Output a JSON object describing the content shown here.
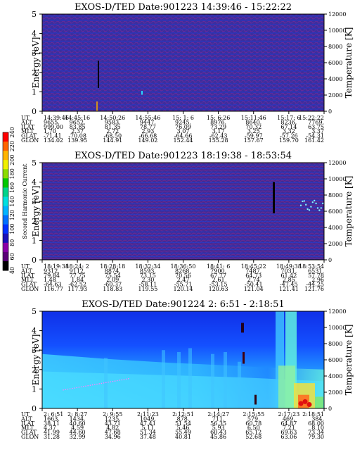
{
  "chart_data": [
    {
      "type": "heatmap",
      "title": "EXOS-D/TED   Date:901223  14:39:46 - 15:22:22",
      "ylabel": "Energy [eV]",
      "y2label": "Temperature [K]",
      "ylim": [
        0,
        5
      ],
      "y2lim": [
        0,
        12000
      ],
      "yticks": [
        "0",
        "1",
        "2",
        "3",
        "4",
        "5"
      ],
      "y2ticks": [
        "0",
        "2000",
        "4000",
        "6000",
        "8000",
        "10000",
        "12000"
      ],
      "background": "noise",
      "orbit_rows": [
        {
          "label": "UT",
          "values": [
            "14:39:46",
            "14:45:16",
            "14:50:26",
            "14:55:46",
            "15: 1: 6",
            "15: 6:26",
            "15:11:46",
            "15:17: 6",
            "15:22:22"
          ]
        },
        {
          "label": "ALT",
          "values": [
            "9655.",
            "9652.",
            "9583.",
            "9447.",
            "9245.",
            "8976.",
            "8640.",
            "8236.",
            "7769."
          ]
        },
        {
          "label": "ILAT",
          "values": [
            "999.00",
            "83.85",
            "81.35",
            "78.77",
            "76.09",
            "73.29",
            "70.32",
            "67.14",
            "63.75"
          ]
        },
        {
          "label": "MLT",
          "values": [
            "1.70",
            "2.37",
            "2.72",
            "2.93",
            "3.07",
            "3.17",
            "3.25",
            "3.32",
            "3.37"
          ]
        },
        {
          "label": "GLAT",
          "values": [
            "-71.41",
            "-70.08",
            "-68.50",
            "-66.68",
            "-64.66",
            "-62.43",
            "-59.97",
            "-57.26",
            "-54.31"
          ]
        },
        {
          "label": "GLON",
          "values": [
            "134.02",
            "139.95",
            "144.91",
            "149.02",
            "152.44",
            "155.28",
            "157.67",
            "159.70",
            "161.42"
          ]
        }
      ]
    },
    {
      "type": "heatmap",
      "title": "EXOS-D/TED   Date:901223  18:19:38 - 18:53:54",
      "ylabel": "Energy [eV]",
      "y2label": "Temperature [K]",
      "ylim": [
        0,
        5
      ],
      "y2lim": [
        0,
        12000
      ],
      "yticks": [
        "0",
        "1",
        "2",
        "3",
        "4",
        "5"
      ],
      "y2ticks": [
        "0",
        "2000",
        "4000",
        "6000",
        "8000",
        "10000",
        "12000"
      ],
      "background": "noise",
      "orbit_rows": [
        {
          "label": "UT",
          "values": [
            "18:19:38",
            "18:24: 2",
            "18:28:18",
            "18:32:34",
            "18:36:50",
            "18:41: 6",
            "18:45:22",
            "18:49:38",
            "18:53:54"
          ]
        },
        {
          "label": "ALT",
          "values": [
            "9312.",
            "9112.",
            "8874.",
            "8593.",
            "8268.",
            "7900.",
            "7487.",
            "7031.",
            "6531."
          ]
        },
        {
          "label": "ILAT",
          "values": [
            "79.84",
            "77.75",
            "75.54",
            "73.15",
            "70.56",
            "67.77",
            "64.73",
            "61.42",
            "57.78"
          ]
        },
        {
          "label": "MLT",
          "values": [
            "1.48",
            "1.84",
            "2.09",
            "2.30",
            "2.47",
            "2.61",
            "2.74",
            "2.85",
            "2.96"
          ]
        },
        {
          "label": "GLAT",
          "values": [
            "-64.63",
            "-62.52",
            "-60.37",
            "-58.11",
            "-55.71",
            "-53.15",
            "-50.41",
            "-47.45",
            "-44.25"
          ]
        },
        {
          "label": "GLON",
          "values": [
            "116.77",
            "117.93",
            "118.83",
            "119.55",
            "120.14",
            "120.63",
            "121.04",
            "121.41",
            "121.76"
          ]
        }
      ]
    },
    {
      "type": "heatmap",
      "title": "EXOS-D/TED   Date:901224   2: 6:51 - 2:18:51",
      "ylabel": "Energy [eV]",
      "y2label": "Temperature [K]",
      "ylim": [
        0,
        5
      ],
      "y2lim": [
        0,
        12000
      ],
      "yticks": [
        "0",
        "1",
        "2",
        "3",
        "4",
        "5"
      ],
      "y2ticks": [
        "0",
        "2000",
        "4000",
        "6000",
        "8000",
        "10000",
        "12000"
      ],
      "background": "plasma",
      "orbit_rows": [
        {
          "label": "UT",
          "values": [
            "2: 6:51",
            "2: 8:27",
            "2: 9:55",
            "2:11:23",
            "2:12:51",
            "2:14:27",
            "2:15:55",
            "2:17:23",
            "2:18:51"
          ]
        },
        {
          "label": "ALT",
          "values": [
            "1663.",
            "1434.",
            "1235.",
            "1049.",
            "878.",
            "711.",
            "579.",
            "469.",
            "384."
          ]
        },
        {
          "label": "ILAT",
          "values": [
            "38.11",
            "40.60",
            "43.71",
            "47.41",
            "51.54",
            "56.35",
            "60.78",
            "64.87",
            "68.00"
          ]
        },
        {
          "label": "MLT",
          "values": [
            "4.37",
            "4.59",
            "4.82",
            "5.11",
            "5.46",
            "5.93",
            "6.50",
            "7.21",
            "8.10"
          ]
        },
        {
          "label": "GLAT",
          "values": [
            "41.99",
            "44.60",
            "47.68",
            "51.34",
            "55.49",
            "60.43",
            "65.12",
            "69.63",
            "73.34"
          ]
        },
        {
          "label": "GLON",
          "values": [
            "31.28",
            "32.99",
            "34.96",
            "37.48",
            "40.81",
            "45.86",
            "52.68",
            "63.06",
            "79.30"
          ]
        }
      ]
    }
  ],
  "colorbar": {
    "label": "Second Harmonic Current",
    "ticks": [
      "40",
      "60",
      "80",
      "100",
      "120",
      "140",
      "160",
      "180",
      "200",
      "220",
      "240"
    ],
    "colors": [
      "#000000",
      "#5a0077",
      "#8a00a8",
      "#1a10b8",
      "#0030ff",
      "#0070ff",
      "#00b4ff",
      "#00e0e0",
      "#00d48c",
      "#00c800",
      "#8cdc00",
      "#f0f000",
      "#ffb400",
      "#ff6400",
      "#ff0000"
    ]
  }
}
